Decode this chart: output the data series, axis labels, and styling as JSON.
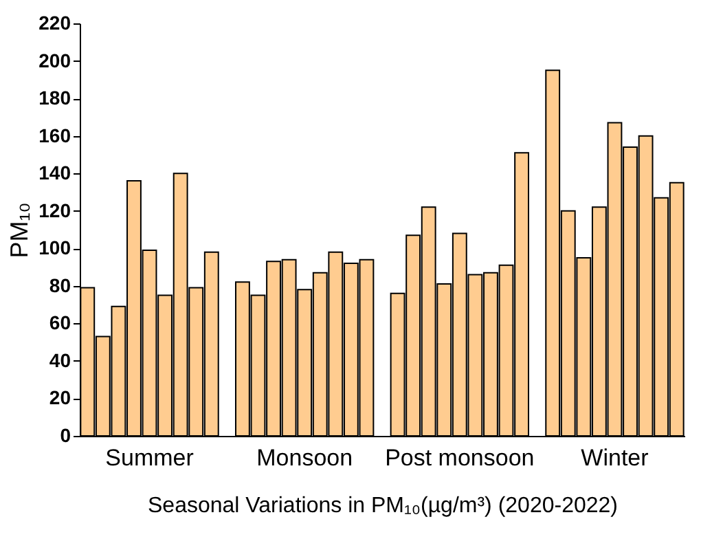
{
  "chart_data": {
    "type": "bar",
    "xlabel": "Seasonal Variations in PM₁₀(µg/m³) (2020-2022)",
    "ylabel": "PM₁₀",
    "categories": [
      "Summer",
      "Monsoon",
      "Post monsoon",
      "Winter"
    ],
    "series": [
      {
        "color": "#ffcc90",
        "values": [
          79,
          82,
          76,
          195
        ]
      },
      {
        "color": "#ffcc90",
        "values": [
          53,
          75,
          107,
          120
        ]
      },
      {
        "color": "#ffcc90",
        "values": [
          69,
          93,
          122,
          95
        ]
      },
      {
        "color": "#ffcc90",
        "values": [
          136,
          94,
          81,
          122
        ]
      },
      {
        "color": "#ffcc90",
        "values": [
          99,
          78,
          108,
          167
        ]
      },
      {
        "color": "#ffcc90",
        "values": [
          75,
          87,
          86,
          154
        ]
      },
      {
        "color": "#ffcc90",
        "values": [
          140,
          98,
          87,
          160
        ]
      },
      {
        "color": "#ffcc90",
        "values": [
          79,
          92,
          91,
          127
        ]
      },
      {
        "color": "#ffcc90",
        "values": [
          98,
          94,
          151,
          135
        ]
      }
    ],
    "ylim": [
      0,
      220
    ],
    "yticks": [
      0,
      20,
      40,
      60,
      80,
      100,
      120,
      140,
      160,
      180,
      200,
      220
    ],
    "grid": false,
    "legend": false
  }
}
